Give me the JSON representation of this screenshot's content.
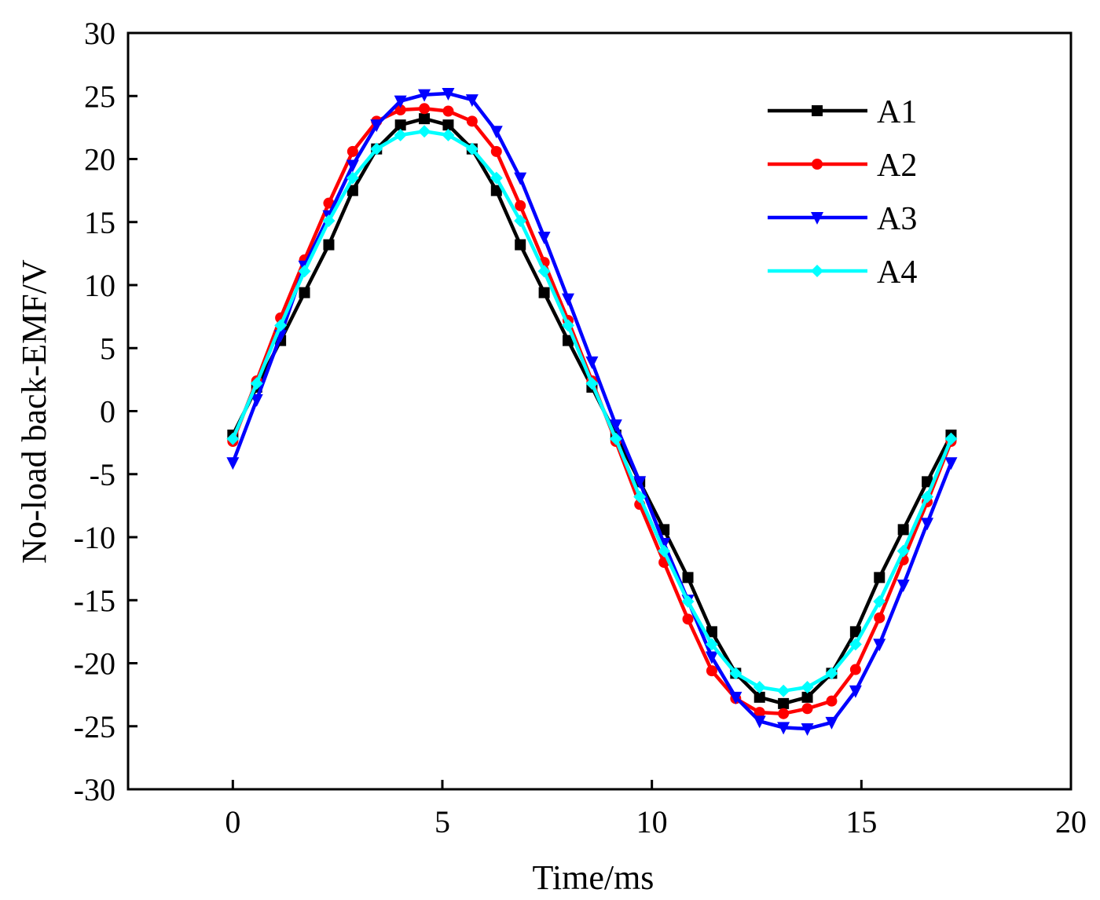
{
  "chart_data": {
    "type": "line",
    "title": "",
    "xlabel": "Time/ms",
    "ylabel": "No-load back-EMF/V",
    "xlim": [
      -2.5,
      20
    ],
    "ylim": [
      -30,
      30
    ],
    "xticks": [
      0,
      5,
      10,
      15,
      20
    ],
    "yticks": [
      30,
      25,
      20,
      15,
      10,
      5,
      0,
      -5,
      -10,
      -15,
      -20,
      -25,
      -30
    ],
    "xtick_labels": [
      "0",
      "5",
      "10",
      "15",
      "20"
    ],
    "ytick_labels": [
      "30",
      "25",
      "20",
      "15",
      "10",
      "5",
      "0",
      "-5",
      "-10",
      "-15",
      "-20",
      "-25",
      "-30"
    ],
    "grid": false,
    "legend_position": "top-right",
    "x": [
      0,
      0.57,
      1.14,
      1.71,
      2.29,
      2.86,
      3.43,
      4.0,
      4.57,
      5.14,
      5.71,
      6.29,
      6.86,
      7.43,
      8.0,
      8.57,
      9.14,
      9.71,
      10.29,
      10.86,
      11.43,
      12.0,
      12.57,
      13.14,
      13.71,
      14.29,
      14.86,
      15.43,
      16.0,
      16.57,
      17.14
    ],
    "series": [
      {
        "name": "A1",
        "color": "#000000",
        "marker": "square",
        "values": [
          -1.9,
          1.9,
          5.6,
          9.4,
          13.2,
          17.5,
          20.8,
          22.7,
          23.2,
          22.7,
          20.8,
          17.5,
          13.2,
          9.4,
          5.6,
          1.9,
          -1.9,
          -5.6,
          -9.4,
          -13.2,
          -17.5,
          -20.8,
          -22.7,
          -23.2,
          -22.7,
          -20.8,
          -17.5,
          -13.2,
          -9.4,
          -5.6,
          -1.9
        ]
      },
      {
        "name": "A2",
        "color": "#ff0000",
        "marker": "circle",
        "values": [
          -2.4,
          2.4,
          7.4,
          12.0,
          16.5,
          20.6,
          23.0,
          23.9,
          24.0,
          23.8,
          23.0,
          20.6,
          16.3,
          11.8,
          7.2,
          2.4,
          -2.4,
          -7.4,
          -12.0,
          -16.5,
          -20.6,
          -22.8,
          -23.9,
          -24.0,
          -23.6,
          -23.0,
          -20.5,
          -16.4,
          -11.8,
          -7.2,
          -2.4
        ]
      },
      {
        "name": "A3",
        "color": "#0000ff",
        "marker": "triangle-down",
        "values": [
          -4.1,
          0.9,
          6.0,
          11.5,
          15.5,
          19.5,
          22.7,
          24.6,
          25.1,
          25.2,
          24.7,
          22.2,
          18.5,
          13.8,
          8.9,
          3.9,
          -1.1,
          -5.6,
          -10.5,
          -15.0,
          -19.5,
          -22.7,
          -24.6,
          -25.1,
          -25.2,
          -24.7,
          -22.2,
          -18.5,
          -13.8,
          -8.9,
          -4.1
        ]
      },
      {
        "name": "A4",
        "color": "#00ffff",
        "marker": "diamond",
        "values": [
          -2.2,
          2.2,
          6.8,
          11.1,
          15.1,
          18.5,
          20.8,
          21.9,
          22.2,
          21.9,
          20.8,
          18.5,
          15.1,
          11.1,
          6.8,
          2.2,
          -2.2,
          -6.8,
          -11.1,
          -15.1,
          -18.5,
          -20.8,
          -21.9,
          -22.2,
          -21.9,
          -20.8,
          -18.5,
          -15.1,
          -11.1,
          -6.8,
          -2.2
        ]
      }
    ]
  }
}
